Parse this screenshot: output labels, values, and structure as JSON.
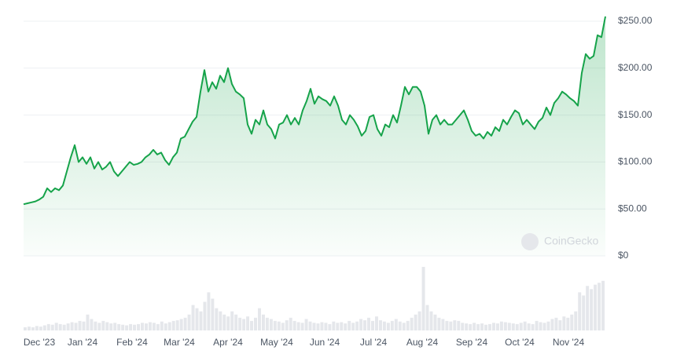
{
  "chart_data": {
    "type": "line",
    "watermark": "CoinGecko",
    "color": "#16a34a",
    "grid": true,
    "xlim": [
      0,
      148
    ],
    "ylim": [
      0,
      250
    ],
    "xticks": [
      {
        "value": 4,
        "label": "Dec '23"
      },
      {
        "value": 15,
        "label": "Jan '24"
      },
      {
        "value": 27.6,
        "label": "Feb '24"
      },
      {
        "value": 39.6,
        "label": "Mar '24"
      },
      {
        "value": 52,
        "label": "Apr '24"
      },
      {
        "value": 64.4,
        "label": "May '24"
      },
      {
        "value": 76.6,
        "label": "Jun '24"
      },
      {
        "value": 89,
        "label": "Jul '24"
      },
      {
        "value": 101.4,
        "label": "Aug '24"
      },
      {
        "value": 114,
        "label": "Sep '24"
      },
      {
        "value": 126.2,
        "label": "Oct '24"
      },
      {
        "value": 138.6,
        "label": "Nov '24"
      }
    ],
    "yticks": [
      {
        "value": 0,
        "label": "$0"
      },
      {
        "value": 50,
        "label": "$50.00"
      },
      {
        "value": 100,
        "label": "$100.00"
      },
      {
        "value": 150,
        "label": "$150.00"
      },
      {
        "value": 200,
        "label": "$200.00"
      },
      {
        "value": 250,
        "label": "$250.00"
      }
    ],
    "values": [
      55,
      56,
      57,
      58,
      60,
      63,
      72,
      68,
      72,
      70,
      75,
      90,
      105,
      118,
      100,
      105,
      98,
      105,
      93,
      100,
      92,
      95,
      100,
      90,
      85,
      90,
      95,
      100,
      97,
      98,
      100,
      105,
      108,
      113,
      108,
      110,
      102,
      97,
      105,
      110,
      125,
      127,
      135,
      143,
      148,
      175,
      198,
      175,
      185,
      178,
      192,
      185,
      200,
      183,
      175,
      172,
      168,
      140,
      130,
      145,
      140,
      155,
      140,
      135,
      125,
      140,
      142,
      150,
      140,
      147,
      140,
      155,
      165,
      178,
      162,
      170,
      167,
      165,
      160,
      170,
      160,
      145,
      140,
      150,
      145,
      138,
      128,
      133,
      148,
      150,
      135,
      128,
      140,
      137,
      150,
      142,
      160,
      180,
      172,
      180,
      180,
      175,
      160,
      130,
      145,
      150,
      140,
      145,
      140,
      140,
      145,
      150,
      155,
      145,
      133,
      128,
      130,
      125,
      132,
      128,
      137,
      133,
      145,
      140,
      148,
      155,
      152,
      140,
      145,
      140,
      135,
      143,
      147,
      158,
      150,
      163,
      168,
      175,
      172,
      168,
      165,
      160,
      195,
      215,
      210,
      213,
      235,
      233,
      255
    ],
    "volume": {
      "color": "#e5e7eb",
      "ylim": [
        0,
        100
      ],
      "values": [
        5,
        6,
        5,
        7,
        6,
        8,
        10,
        9,
        12,
        10,
        9,
        11,
        13,
        12,
        15,
        14,
        25,
        18,
        14,
        12,
        15,
        13,
        11,
        12,
        10,
        9,
        8,
        10,
        9,
        10,
        12,
        11,
        13,
        12,
        10,
        14,
        11,
        13,
        15,
        16,
        18,
        20,
        25,
        40,
        35,
        30,
        45,
        60,
        50,
        35,
        30,
        25,
        22,
        30,
        25,
        20,
        18,
        22,
        15,
        20,
        35,
        25,
        20,
        18,
        15,
        14,
        12,
        16,
        20,
        15,
        13,
        12,
        18,
        14,
        12,
        11,
        13,
        12,
        10,
        14,
        12,
        13,
        11,
        15,
        12,
        14,
        18,
        16,
        20,
        15,
        22,
        16,
        14,
        12,
        15,
        18,
        14,
        12,
        15,
        20,
        25,
        30,
        100,
        40,
        30,
        25,
        20,
        18,
        15,
        14,
        16,
        15,
        12,
        11,
        10,
        12,
        10,
        11,
        9,
        10,
        12,
        11,
        14,
        13,
        12,
        11,
        10,
        12,
        14,
        11,
        10,
        15,
        13,
        12,
        14,
        18,
        20,
        16,
        22,
        20,
        25,
        30,
        60,
        55,
        70,
        65,
        72,
        75,
        78
      ]
    }
  }
}
